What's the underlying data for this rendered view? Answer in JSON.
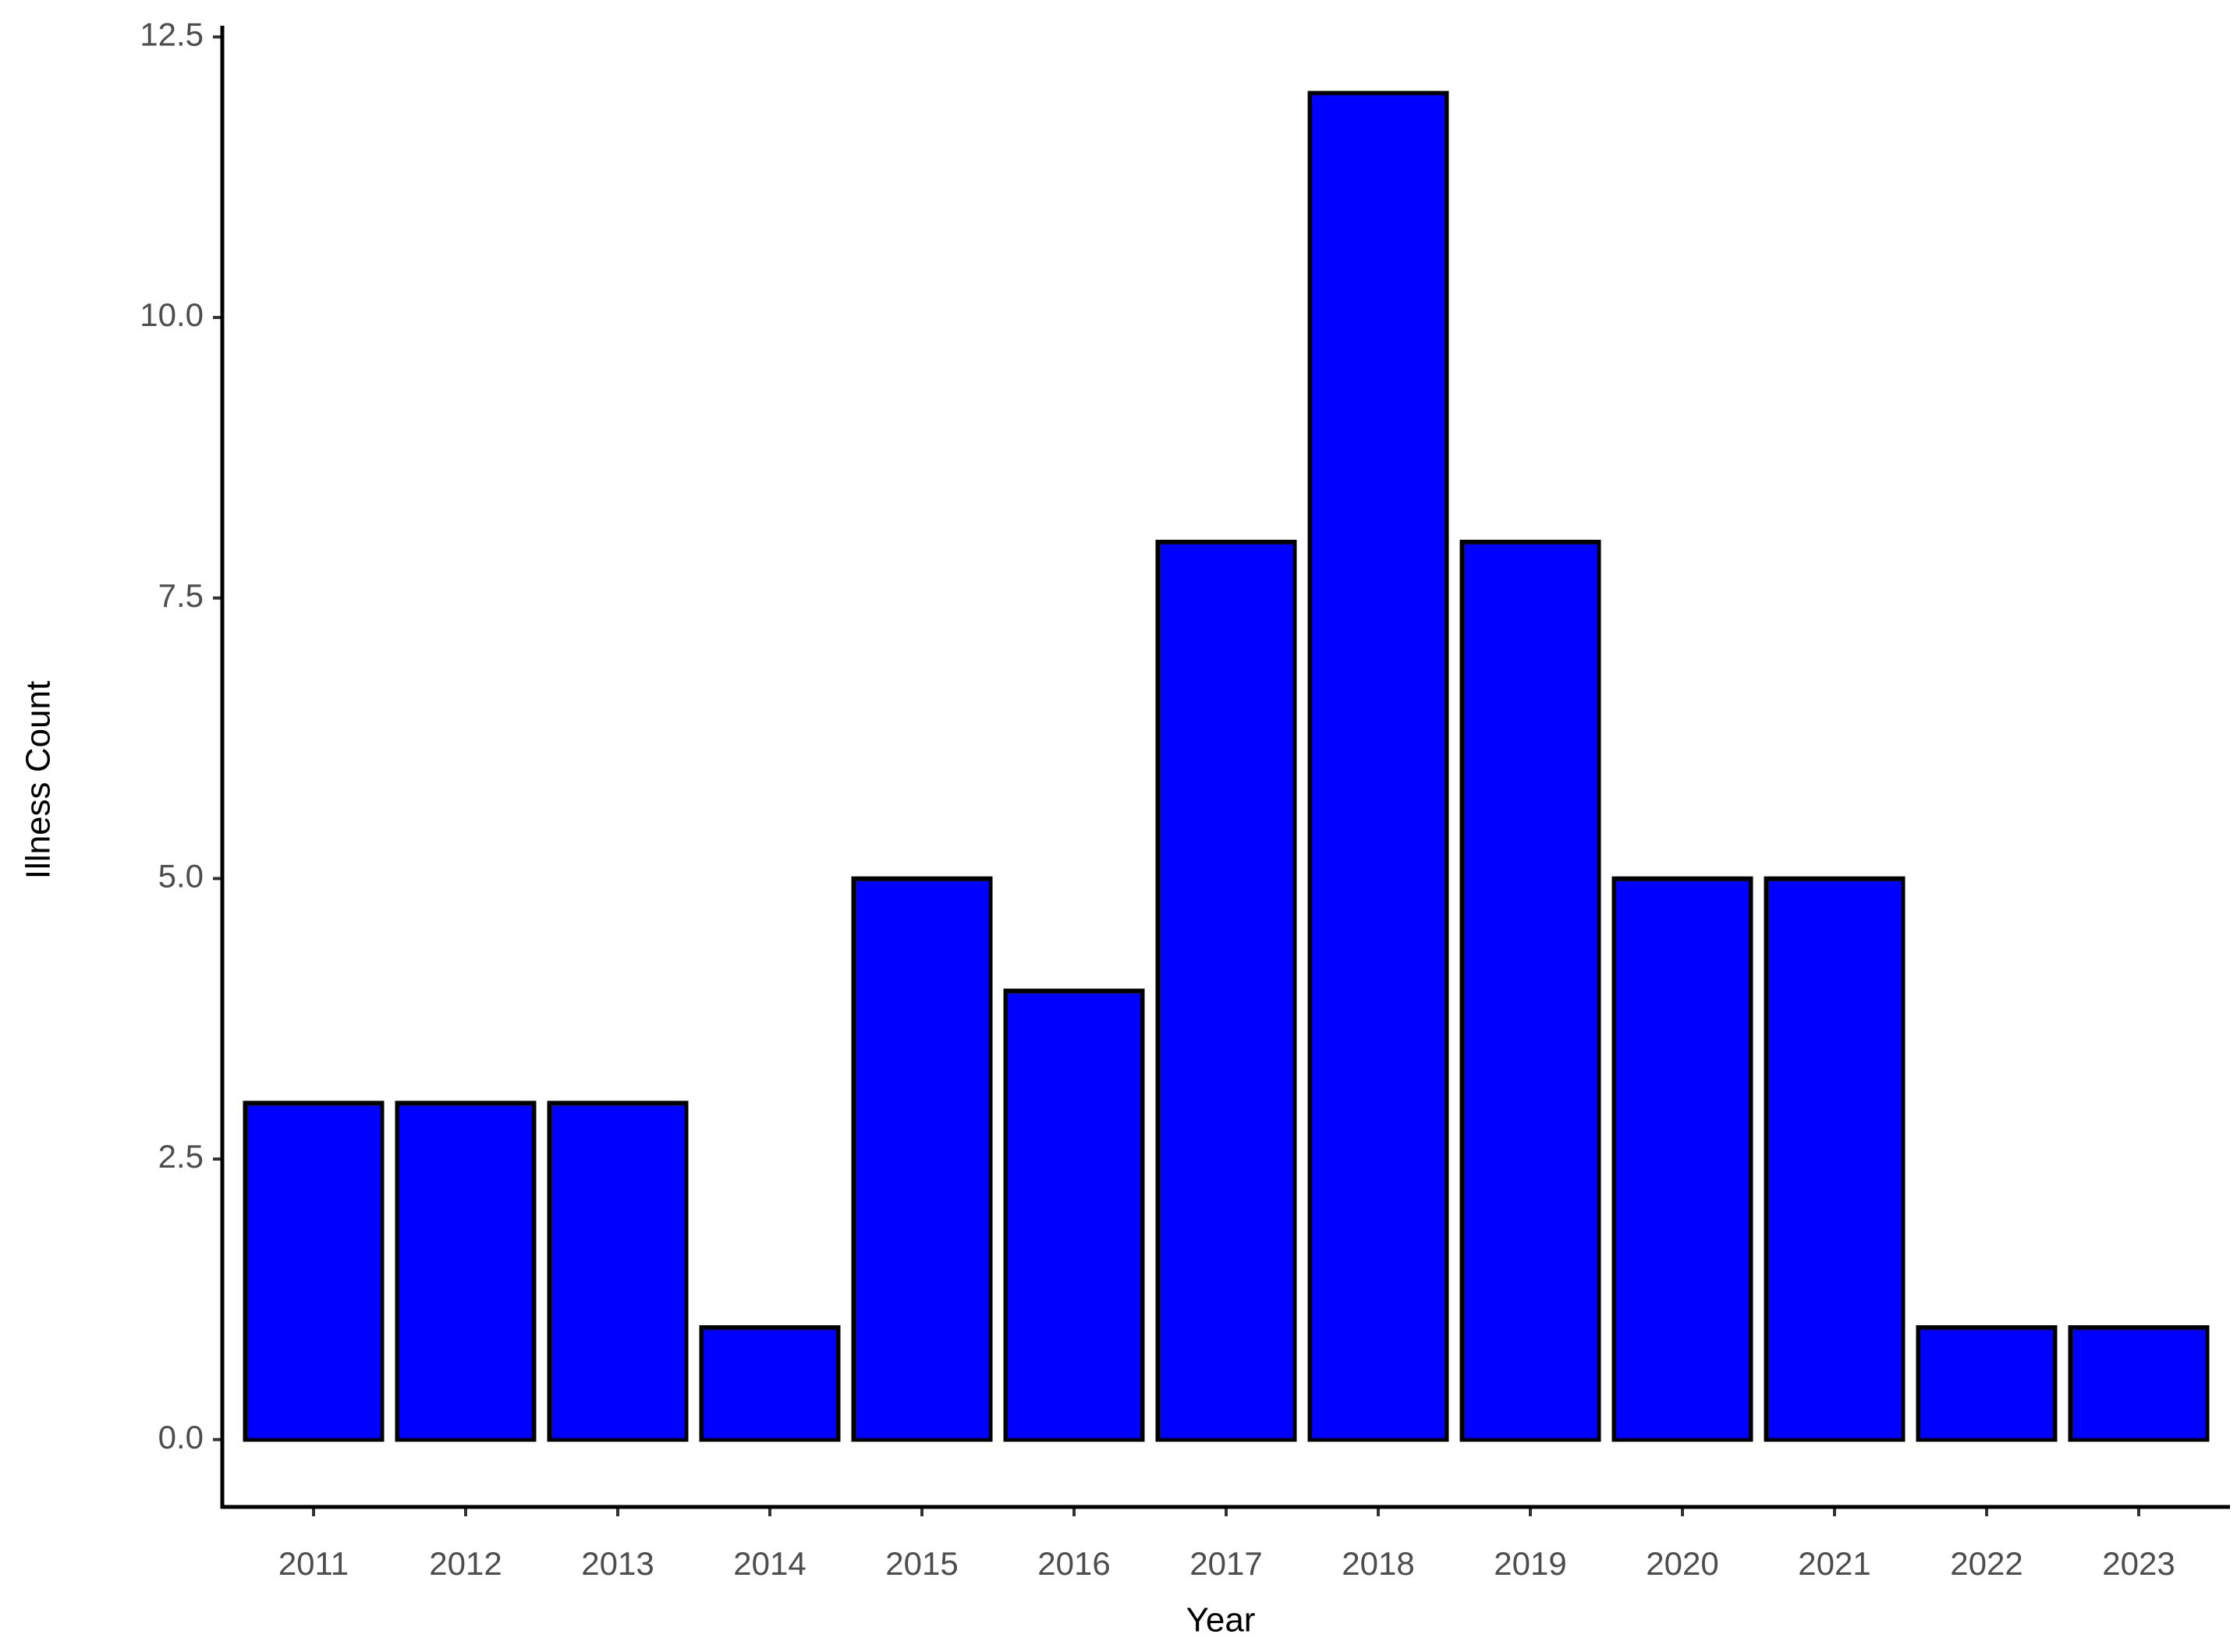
{
  "chart_data": {
    "type": "bar",
    "x_label": "Year",
    "y_label": "Illness Count",
    "categories": [
      "2011",
      "2012",
      "2013",
      "2014",
      "2015",
      "2016",
      "2017",
      "2018",
      "2019",
      "2020",
      "2021",
      "2022",
      "2023"
    ],
    "values": [
      3,
      3,
      3,
      1,
      5,
      4,
      8,
      12,
      8,
      5,
      5,
      1,
      1
    ],
    "color": "#0000ff",
    "edge_color": "#000000",
    "ylim": [
      -0.6,
      12.6
    ],
    "yticks": [
      {
        "value": 0,
        "label": "0.0"
      },
      {
        "value": 2.5,
        "label": "2.5"
      },
      {
        "value": 5,
        "label": "5.0"
      },
      {
        "value": 7.5,
        "label": "7.5"
      },
      {
        "value": 10,
        "label": "10.0"
      },
      {
        "value": 12.5,
        "label": "12.5"
      }
    ],
    "grid": false
  }
}
